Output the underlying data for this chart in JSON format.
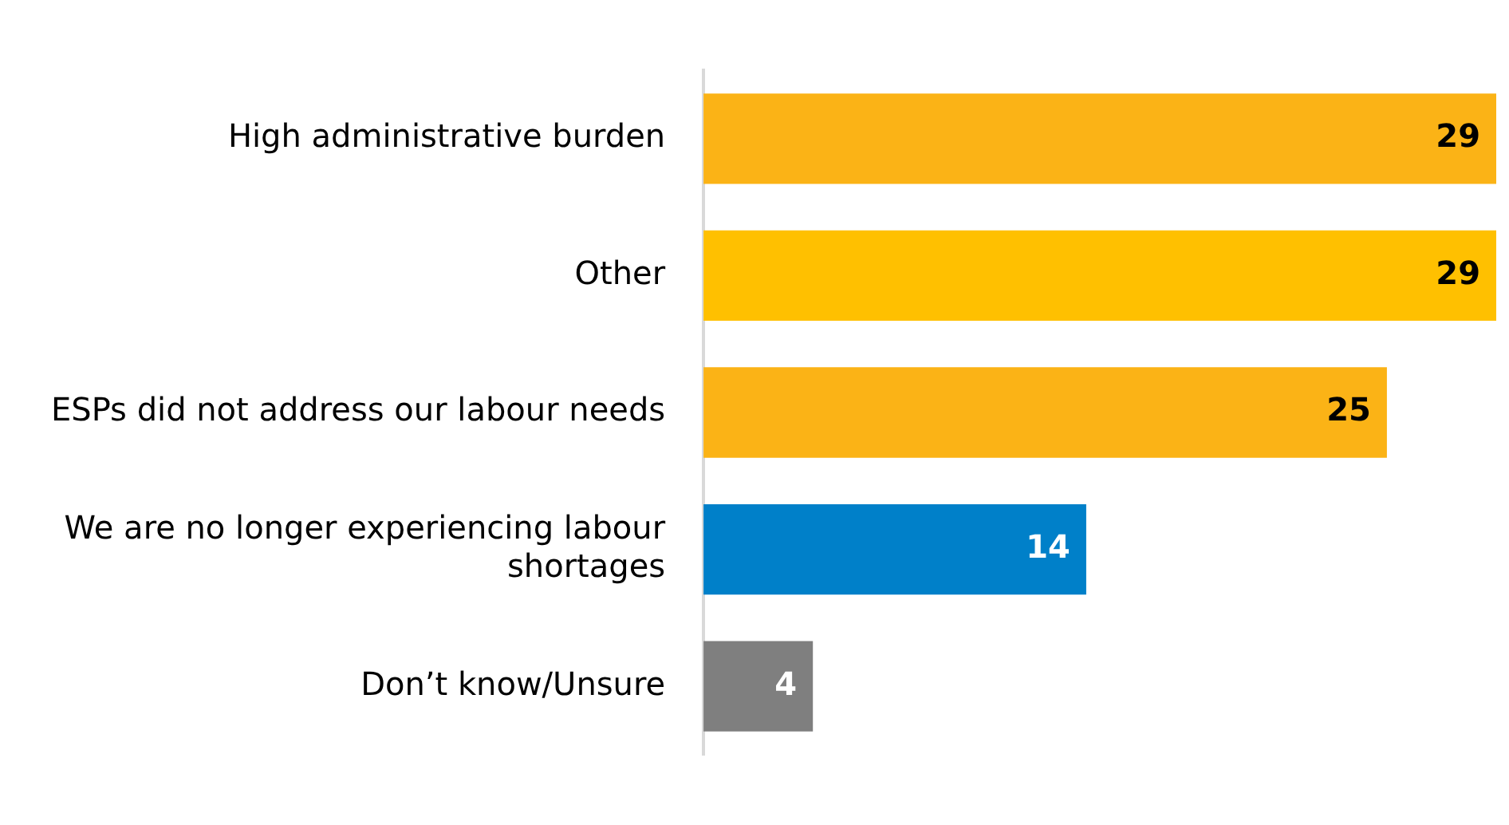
{
  "chart_data": {
    "type": "bar",
    "orientation": "horizontal",
    "categories": [
      "High administrative burden",
      "Other",
      "ESPs did not address our labour needs",
      "We are no longer experiencing labour shortages",
      "Don’t know/Unsure"
    ],
    "values": [
      29,
      29,
      25,
      14,
      4
    ],
    "colors": [
      "#fbb316",
      "#ffc000",
      "#fbb316",
      "#0080c9",
      "#7f7f7f"
    ],
    "xlim": [
      0,
      29
    ],
    "data_labels": true,
    "legend": false
  }
}
